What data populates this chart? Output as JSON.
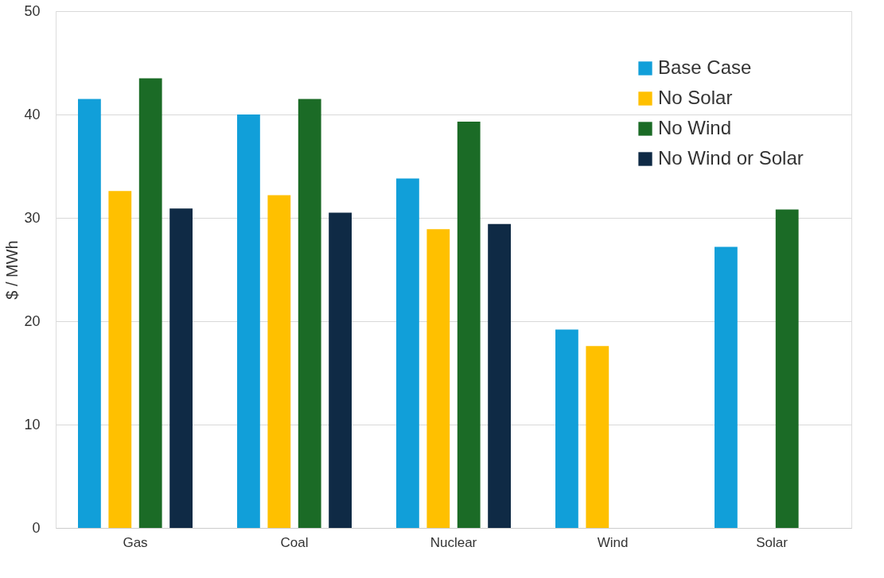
{
  "chart_data": {
    "type": "bar",
    "ylabel": "$ / MWh",
    "categories": [
      "Gas",
      "Coal",
      "Nuclear",
      "Wind",
      "Solar"
    ],
    "series": [
      {
        "name": "Base Case",
        "color": "#119fd9",
        "values": [
          41.5,
          40.0,
          33.8,
          19.2,
          27.2
        ]
      },
      {
        "name": "No Solar",
        "color": "#ffc000",
        "values": [
          32.6,
          32.2,
          28.9,
          17.6,
          null
        ]
      },
      {
        "name": "No Wind",
        "color": "#1b6b26",
        "values": [
          43.5,
          41.5,
          39.3,
          null,
          30.8
        ]
      },
      {
        "name": "No Wind or Solar",
        "color": "#0f2a45",
        "values": [
          30.9,
          30.5,
          29.4,
          null,
          null
        ]
      }
    ],
    "ylim": [
      0,
      50
    ],
    "yticks": [
      0,
      10,
      20,
      30,
      40,
      50
    ],
    "grid": "y",
    "legend": "top right"
  }
}
